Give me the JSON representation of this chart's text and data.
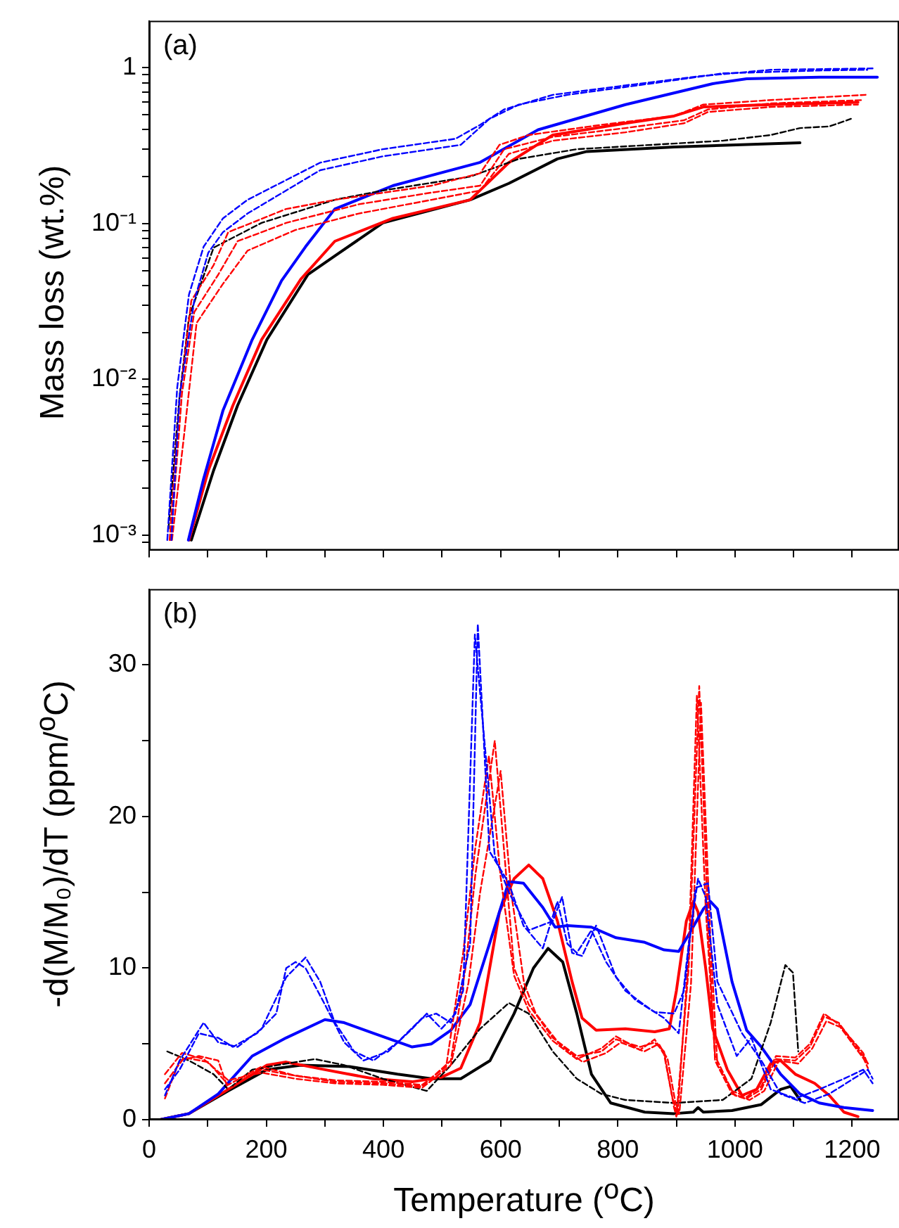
{
  "chart_data": [
    {
      "type": "line",
      "ylabel": "Mass loss (wt.%)",
      "annotations": [
        "(a)"
      ],
      "log": true,
      "marker": "none",
      "tick_labels": "y",
      "xlim": [
        0,
        1280
      ],
      "xticks": [
        0,
        {
          "value": 100,
          "label": null
        },
        {
          "value": 200,
          "label": null
        },
        {
          "value": 300,
          "label": null
        },
        {
          "value": 400,
          "label": null
        },
        {
          "value": 500,
          "label": null
        },
        {
          "value": 600,
          "label": null
        },
        {
          "value": 700,
          "label": null
        },
        {
          "value": 800,
          "label": null
        },
        {
          "value": 900,
          "label": null
        },
        {
          "value": 1000,
          "label": null
        },
        {
          "value": 1100,
          "label": null
        },
        {
          "value": 1200,
          "label": null
        }
      ],
      "ylim": [
        0.0008,
        2
      ],
      "yticks": [
        {
          "value": 0.0009,
          "label": null
        },
        {
          "value": 0.001,
          "label": "10⁻³"
        },
        {
          "value": 0.002,
          "label": null
        },
        {
          "value": 0.003,
          "label": null
        },
        {
          "value": 0.004,
          "label": null
        },
        {
          "value": 0.005,
          "label": null
        },
        {
          "value": 0.006,
          "label": null
        },
        {
          "value": 0.007,
          "label": null
        },
        {
          "value": 0.008,
          "label": null
        },
        {
          "value": 0.009,
          "label": null
        },
        {
          "value": 0.01,
          "label": "10⁻²"
        },
        {
          "value": 0.02,
          "label": null
        },
        {
          "value": 0.03,
          "label": null
        },
        {
          "value": 0.04,
          "label": null
        },
        {
          "value": 0.05,
          "label": null
        },
        {
          "value": 0.06,
          "label": null
        },
        {
          "value": 0.07,
          "label": null
        },
        {
          "value": 0.08,
          "label": null
        },
        {
          "value": 0.09,
          "label": null
        },
        {
          "value": 0.1,
          "label": "10⁻¹"
        },
        {
          "value": 0.2,
          "label": null
        },
        {
          "value": 0.3,
          "label": null
        },
        {
          "value": 0.4,
          "label": null
        },
        {
          "value": 0.5,
          "label": null
        },
        {
          "value": 0.6,
          "label": null
        },
        {
          "value": 0.7,
          "label": null
        },
        {
          "value": 0.8,
          "label": null
        },
        {
          "value": 0.9,
          "label": null
        },
        1
      ],
      "series": [
        {
          "color": "#0000ff",
          "line_style": "dashed",
          "x": [
            31,
            48,
            68,
            93,
            126,
            168,
            292,
            399,
            523,
            565,
            606,
            689,
            813,
            937,
            1061,
            1235
          ],
          "values": [
            0.00093,
            0.0089,
            0.035,
            0.071,
            0.108,
            0.142,
            0.246,
            0.3,
            0.35,
            0.43,
            0.54,
            0.67,
            0.77,
            0.88,
            0.97,
            0.99
          ]
        },
        {
          "color": "#0000ff",
          "line_style": "dashed",
          "x": [
            38,
            52,
            77,
            101,
            126,
            168,
            292,
            399,
            532,
            581,
            631,
            714,
            855,
            979,
            1144,
            1226
          ],
          "values": [
            0.00093,
            0.0078,
            0.032,
            0.065,
            0.088,
            0.116,
            0.22,
            0.27,
            0.32,
            0.47,
            0.58,
            0.67,
            0.79,
            0.92,
            0.96,
            0.97
          ]
        },
        {
          "color": "#ff0000",
          "line_style": "dashed",
          "x": [
            35,
            52,
            72,
            110,
            135,
            234,
            317,
            482,
            565,
            598,
            648,
            772,
            896,
            946,
            1061,
            1223
          ],
          "values": [
            0.00093,
            0.0075,
            0.032,
            0.054,
            0.088,
            0.124,
            0.142,
            0.175,
            0.21,
            0.32,
            0.37,
            0.43,
            0.49,
            0.58,
            0.62,
            0.67
          ]
        },
        {
          "color": "#ff0000",
          "line_style": "dashed",
          "x": [
            37,
            56,
            77,
            118,
            151,
            234,
            358,
            482,
            565,
            606,
            689,
            813,
            913,
            954,
            1061,
            1219
          ],
          "values": [
            0.00093,
            0.0081,
            0.027,
            0.047,
            0.077,
            0.101,
            0.133,
            0.158,
            0.175,
            0.3,
            0.36,
            0.41,
            0.46,
            0.54,
            0.59,
            0.62
          ]
        },
        {
          "color": "#ff0000",
          "line_style": "dashed",
          "x": [
            39,
            60,
            81,
            126,
            168,
            250,
            358,
            482,
            565,
            614,
            689,
            813,
            913,
            954,
            1061,
            1210
          ],
          "values": [
            0.00093,
            0.0045,
            0.023,
            0.041,
            0.067,
            0.091,
            0.116,
            0.142,
            0.163,
            0.28,
            0.34,
            0.385,
            0.44,
            0.52,
            0.56,
            0.58
          ]
        },
        {
          "color": "#000000",
          "line_style": "dashed",
          "x": [
            33,
            52,
            68,
            110,
            192,
            317,
            399,
            548,
            631,
            730,
            979,
            1061,
            1111,
            1161,
            1198
          ],
          "values": [
            0.0011,
            0.0078,
            0.025,
            0.07,
            0.101,
            0.142,
            0.163,
            0.2,
            0.26,
            0.3,
            0.34,
            0.37,
            0.41,
            0.42,
            0.47
          ]
        },
        {
          "color": "#0000ff",
          "line_style": "solid",
          "x": [
            67,
            93,
            126,
            176,
            226,
            267,
            317,
            416,
            565,
            664,
            813,
            962,
            1020,
            1144,
            1243
          ],
          "values": [
            0.00093,
            0.0023,
            0.0063,
            0.018,
            0.043,
            0.071,
            0.124,
            0.175,
            0.247,
            0.4,
            0.58,
            0.79,
            0.85,
            0.87,
            0.87
          ]
        },
        {
          "color": "#ff0000",
          "line_style": "solid",
          "x": [
            68,
            101,
            143,
            192,
            259,
            317,
            416,
            548,
            614,
            689,
            813,
            896,
            946,
            1061,
            1210
          ],
          "values": [
            0.00093,
            0.0026,
            0.0068,
            0.018,
            0.044,
            0.077,
            0.108,
            0.142,
            0.246,
            0.37,
            0.44,
            0.49,
            0.56,
            0.58,
            0.6
          ]
        },
        {
          "color": "#000000",
          "line_style": "solid",
          "x": [
            72,
            110,
            151,
            201,
            271,
            317,
            399,
            548,
            614,
            697,
            747,
            896,
            1111
          ],
          "values": [
            0.00093,
            0.0026,
            0.0068,
            0.018,
            0.047,
            0.062,
            0.101,
            0.142,
            0.181,
            0.26,
            0.29,
            0.31,
            0.33
          ]
        }
      ]
    },
    {
      "type": "line",
      "xlabel": "Temperature ($^{o}$C)",
      "ylabel": "-d(M/M₀)/dT (ppm/$^{o}$C)",
      "annotations": [
        "(b)"
      ],
      "marker": "none",
      "xlim": [
        0,
        1280
      ],
      "xticks": [
        0,
        {
          "value": 100,
          "label": null
        },
        200,
        {
          "value": 300,
          "label": null
        },
        400,
        {
          "value": 500,
          "label": null
        },
        600,
        {
          "value": 700,
          "label": null
        },
        800,
        {
          "value": 900,
          "label": null
        },
        1000,
        {
          "value": 1100,
          "label": null
        },
        1200
      ],
      "ylim": [
        0,
        35
      ],
      "yticks": [
        0,
        {
          "value": 5,
          "label": null
        },
        10,
        {
          "value": 15,
          "label": null
        },
        20,
        {
          "value": 25,
          "label": null
        },
        30
      ],
      "series": [
        {
          "color": "#0000ff",
          "line_style": "dashed",
          "x": [
            27,
            52,
            85,
            118,
            143,
            184,
            217,
            234,
            250,
            267,
            300,
            333,
            366,
            408,
            449,
            474,
            499,
            523,
            548,
            561,
            581,
            614,
            639,
            672,
            697,
            714,
            730,
            755,
            780,
            813,
            855,
            879,
            904,
            921,
            937,
            950,
            970,
            1003,
            1028,
            1061,
            1103,
            1144,
            1186,
            1219,
            1235
          ],
          "values": [
            2.0,
            3.3,
            5.7,
            5.4,
            4.8,
            5.7,
            7.0,
            10.0,
            10.4,
            10.0,
            7.6,
            5.1,
            3.9,
            4.5,
            6.0,
            7.0,
            6.0,
            7.0,
            11.6,
            32.7,
            17.7,
            15.6,
            12.8,
            11.3,
            14.4,
            11.6,
            11.0,
            12.5,
            10.4,
            8.5,
            7.3,
            6.7,
            5.7,
            11.6,
            15.9,
            14.7,
            7.6,
            4.2,
            5.4,
            2.0,
            1.4,
            2.0,
            2.7,
            3.3,
            2.4
          ]
        },
        {
          "color": "#0000ff",
          "line_style": "dashed",
          "x": [
            27,
            52,
            93,
            118,
            151,
            192,
            234,
            267,
            292,
            317,
            350,
            383,
            424,
            466,
            490,
            515,
            536,
            556,
            590,
            614,
            648,
            689,
            705,
            722,
            739,
            763,
            797,
            830,
            863,
            896,
            913,
            933,
            954,
            970,
            1012,
            1045,
            1078,
            1119,
            1161,
            1202,
            1227,
            1235
          ],
          "values": [
            1.6,
            3.9,
            6.4,
            5.1,
            4.8,
            6.0,
            9.4,
            10.7,
            9.1,
            6.4,
            4.5,
            3.9,
            5.1,
            6.7,
            7.0,
            6.4,
            8.5,
            32.0,
            17.4,
            15.0,
            12.5,
            13.1,
            14.7,
            11.0,
            10.8,
            12.8,
            9.4,
            7.9,
            7.1,
            7.0,
            8.5,
            15.3,
            15.6,
            9.1,
            5.7,
            3.9,
            1.7,
            1.1,
            1.7,
            2.7,
            3.3,
            2.7
          ]
        },
        {
          "color": "#ff0000",
          "line_style": "dashed",
          "x": [
            27,
            52,
            85,
            118,
            135,
            192,
            234,
            317,
            399,
            466,
            515,
            540,
            557,
            590,
            606,
            623,
            648,
            689,
            730,
            772,
            797,
            838,
            863,
            879,
            896,
            900,
            921,
            939,
            954,
            966,
            995,
            1020,
            1045,
            1070,
            1103,
            1128,
            1152,
            1177,
            1219,
            1227
          ],
          "values": [
            1.4,
            3.9,
            4.2,
            3.9,
            2.0,
            3.3,
            3.0,
            2.5,
            2.4,
            2.2,
            3.9,
            10.0,
            16.2,
            25.0,
            17.7,
            10.0,
            7.6,
            5.4,
            4.2,
            4.5,
            5.3,
            4.8,
            5.1,
            4.5,
            0.8,
            0.2,
            10.0,
            28.6,
            13.1,
            3.9,
            1.7,
            1.4,
            2.0,
            4.0,
            3.9,
            4.8,
            6.8,
            6.4,
            4.2,
            3.7
          ]
        },
        {
          "color": "#ff0000",
          "line_style": "dashed",
          "x": [
            27,
            60,
            101,
            135,
            192,
            250,
            317,
            399,
            466,
            507,
            536,
            557,
            580,
            600,
            623,
            648,
            689,
            730,
            772,
            797,
            838,
            863,
            879,
            893,
            902,
            921,
            935,
            950,
            966,
            995,
            1020,
            1045,
            1070,
            1103,
            1128,
            1152,
            1177,
            1219,
            1227
          ],
          "values": [
            2.4,
            4.1,
            3.8,
            2.3,
            3.5,
            2.9,
            2.6,
            2.5,
            2.3,
            3.5,
            11.0,
            18.0,
            24.0,
            16.0,
            9.5,
            7.2,
            5.2,
            4.0,
            4.7,
            5.5,
            4.6,
            5.3,
            4.3,
            1.5,
            0.3,
            11.0,
            28.0,
            14.0,
            4.2,
            1.9,
            1.5,
            2.2,
            4.2,
            4.1,
            5.0,
            7.0,
            6.3,
            4.4,
            3.6
          ]
        },
        {
          "color": "#ff0000",
          "line_style": "dashed",
          "x": [
            27,
            56,
            93,
            135,
            192,
            250,
            317,
            399,
            466,
            515,
            545,
            565,
            600,
            618,
            640,
            660,
            700,
            740,
            780,
            805,
            845,
            870,
            885,
            898,
            905,
            925,
            942,
            958,
            970,
            1000,
            1025,
            1050,
            1075,
            1108,
            1132,
            1156,
            1180,
            1220,
            1227
          ],
          "values": [
            3.0,
            4.4,
            4.0,
            2.6,
            3.1,
            2.7,
            2.4,
            2.3,
            2.1,
            3.6,
            9.0,
            15.0,
            23.0,
            15.0,
            9.0,
            7.0,
            5.0,
            3.8,
            4.4,
            5.1,
            4.5,
            5.0,
            4.0,
            1.2,
            0.4,
            9.0,
            27.5,
            12.0,
            3.6,
            1.6,
            1.3,
            1.9,
            3.9,
            3.7,
            4.7,
            6.5,
            6.1,
            4.0,
            3.4
          ]
        },
        {
          "color": "#000000",
          "line_style": "dashed",
          "x": [
            31,
            68,
            110,
            135,
            176,
            234,
            283,
            333,
            399,
            474,
            515,
            565,
            614,
            648,
            689,
            730,
            772,
            813,
            896,
            979,
            1028,
            1061,
            1086,
            1099,
            1108
          ],
          "values": [
            4.5,
            3.9,
            3.0,
            2.0,
            3.3,
            3.7,
            4.0,
            3.6,
            2.7,
            1.9,
            3.6,
            6.0,
            7.7,
            7.0,
            4.5,
            2.7,
            1.7,
            1.3,
            1.1,
            1.3,
            2.7,
            6.4,
            10.2,
            9.7,
            4.5
          ]
        },
        {
          "color": "#0000ff",
          "line_style": "solid",
          "x": [
            19,
            68,
            118,
            176,
            234,
            300,
            333,
            383,
            449,
            482,
            515,
            548,
            581,
            614,
            639,
            672,
            693,
            714,
            755,
            797,
            846,
            879,
            904,
            921,
            946,
            958,
            970,
            995,
            1020,
            1045,
            1078,
            1111,
            1144,
            1186,
            1235
          ],
          "values": [
            0,
            0.4,
            1.7,
            4.2,
            5.4,
            6.6,
            6.4,
            5.7,
            4.8,
            5.0,
            5.9,
            7.6,
            11.6,
            15.7,
            15.6,
            14.0,
            12.7,
            12.8,
            12.7,
            12.0,
            11.7,
            11.2,
            11.1,
            12.2,
            13.9,
            14.4,
            13.9,
            9.1,
            5.9,
            4.8,
            3.0,
            1.7,
            1.1,
            0.8,
            0.6
          ]
        },
        {
          "color": "#ff0000",
          "line_style": "solid",
          "x": [
            19,
            68,
            135,
            201,
            234,
            300,
            383,
            449,
            499,
            532,
            565,
            598,
            623,
            648,
            672,
            697,
            722,
            739,
            763,
            813,
            863,
            888,
            900,
            917,
            929,
            937,
            950,
            962,
            987,
            1012,
            1037,
            1061,
            1078,
            1103,
            1136,
            1161,
            1186,
            1210
          ],
          "values": [
            0,
            0.4,
            2.0,
            3.6,
            3.8,
            3.3,
            2.7,
            2.5,
            2.8,
            3.4,
            6.4,
            13.7,
            15.9,
            16.8,
            15.9,
            13.1,
            9.1,
            6.7,
            5.9,
            6.0,
            5.8,
            6.0,
            8.5,
            13.1,
            14.4,
            13.7,
            10.0,
            6.0,
            3.3,
            1.6,
            2.0,
            3.7,
            3.9,
            3.0,
            2.4,
            1.6,
            0.5,
            0.2
          ]
        },
        {
          "color": "#000000",
          "line_style": "solid",
          "x": [
            19,
            68,
            135,
            201,
            259,
            342,
            424,
            482,
            532,
            582,
            623,
            656,
            681,
            706,
            730,
            755,
            788,
            846,
            896,
            929,
            937,
            946,
            995,
            1045,
            1078,
            1095,
            1111
          ],
          "values": [
            0,
            0.4,
            1.9,
            3.3,
            3.6,
            3.5,
            3.0,
            2.7,
            2.7,
            3.9,
            7.0,
            10.0,
            11.3,
            10.4,
            7.0,
            3.0,
            1.1,
            0.5,
            0.4,
            0.5,
            0.8,
            0.5,
            0.6,
            1.0,
            2.0,
            2.2,
            1.3
          ]
        }
      ]
    }
  ]
}
